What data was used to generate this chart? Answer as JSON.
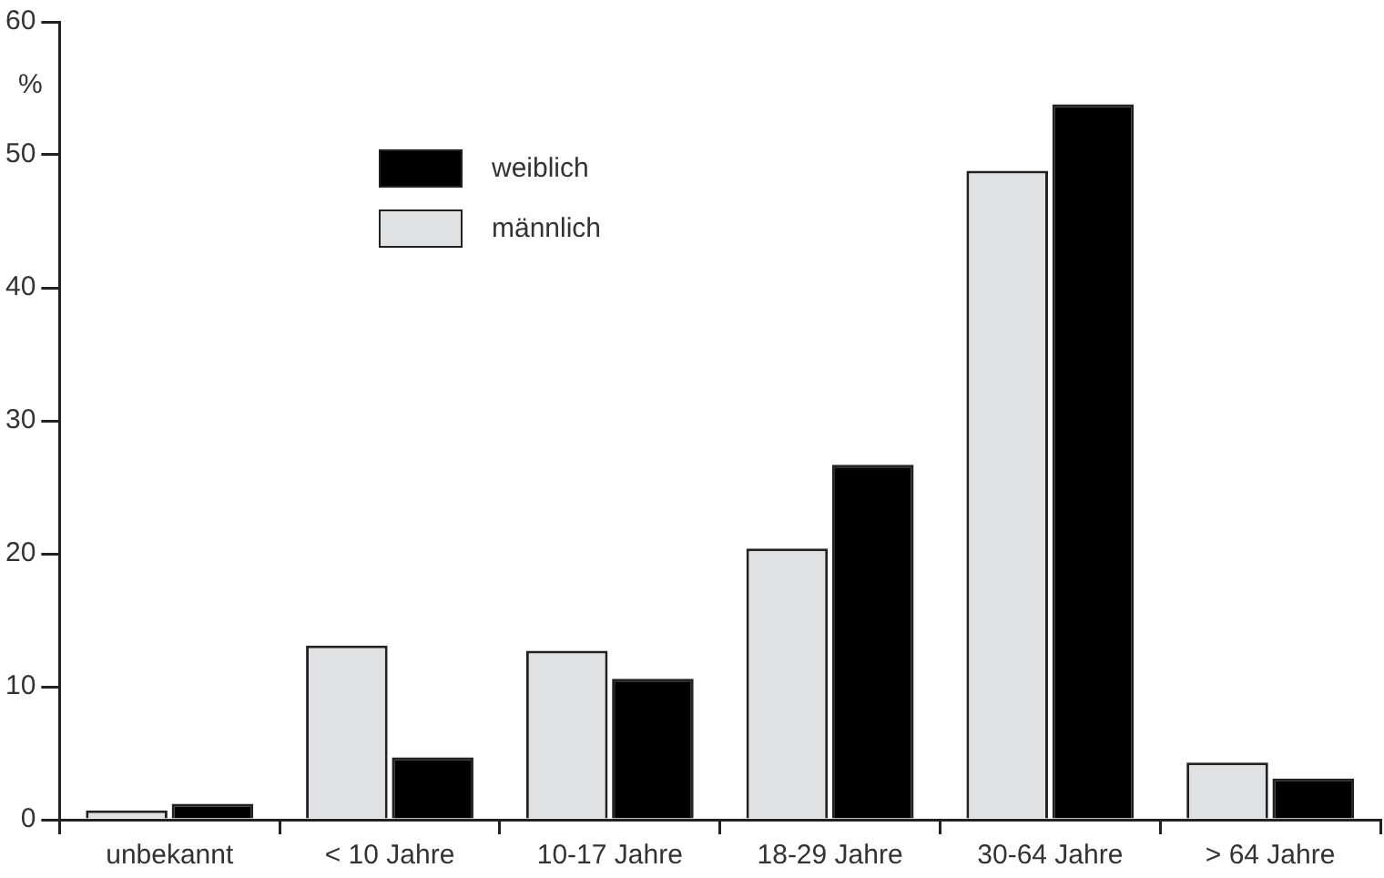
{
  "chart_data": {
    "type": "bar",
    "ylabel": "%",
    "categories": [
      "unbekannt",
      "< 10 Jahre",
      "10-17 Jahre",
      "18-29 Jahre",
      "30-64 Jahre",
      "> 64 Jahre"
    ],
    "series": [
      {
        "name": "männlich",
        "color": "#e0e1e3",
        "values": [
          0.7,
          13.1,
          12.7,
          20.4,
          48.8,
          4.3
        ]
      },
      {
        "name": "weiblich",
        "color": "#000000",
        "values": [
          1.2,
          4.7,
          10.6,
          26.7,
          53.8,
          3.1
        ]
      }
    ],
    "ylim": [
      0,
      60
    ],
    "yticks": [
      0,
      10,
      20,
      30,
      40,
      50,
      60
    ],
    "grid": false,
    "legend": "top left"
  }
}
